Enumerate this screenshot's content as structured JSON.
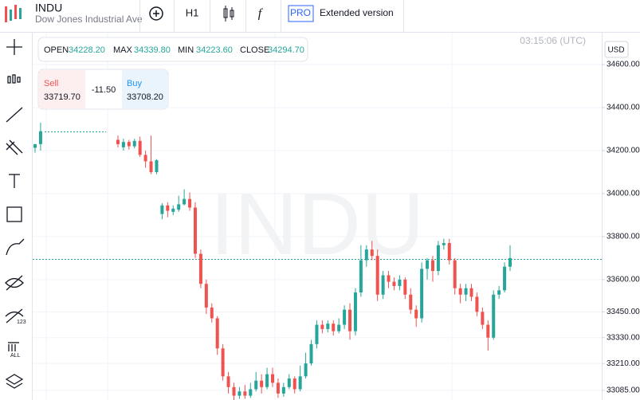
{
  "header": {
    "title": "INDU",
    "subtitle": "Dow Jones Industrial Ave",
    "timeframe": "H1",
    "pro": "PRO",
    "extended": "Extended version"
  },
  "toolbar": {
    "icon_123": "123",
    "icon_all": "ALL"
  },
  "info": {
    "open_label": "OPEN",
    "open": "34228.20",
    "max_label": "MAX",
    "max": "34339.80",
    "min_label": "MIN",
    "min": "34223.60",
    "close_label": "CLOSE",
    "close": "34294.70"
  },
  "trade": {
    "sell_label": "Sell",
    "sell": "33719.70",
    "spread": "-11.50",
    "buy_label": "Buy",
    "buy": "33708.20"
  },
  "clock": "03:15:06 (UTC)",
  "currency": "USD",
  "watermark": "INDU",
  "chart_data": {
    "type": "candlestick",
    "up_color": "#26a69a",
    "down_color": "#ef5350",
    "categories": [
      null,
      null,
      null,
      null,
      null,
      null,
      null,
      null,
      null,
      null,
      null,
      null,
      null,
      null,
      null,
      null,
      null,
      null,
      null,
      null,
      null,
      null,
      null,
      null,
      null,
      null,
      null,
      null,
      null,
      null,
      null,
      null,
      null,
      null,
      null,
      null,
      null,
      null,
      null,
      null,
      null,
      null,
      null,
      null,
      null,
      null,
      null,
      null,
      null,
      null,
      null,
      null,
      null,
      null,
      null,
      null,
      null,
      null,
      null,
      null,
      null,
      null,
      null,
      null,
      null,
      null,
      null,
      null,
      null,
      null,
      null,
      null,
      null,
      null,
      null,
      null,
      null,
      null,
      null,
      null,
      null,
      null,
      null,
      null,
      null,
      null,
      null
    ],
    "open": [
      34213,
      34230,
      null,
      null,
      null,
      null,
      null,
      null,
      null,
      null,
      null,
      null,
      null,
      null,
      null,
      34250,
      34215,
      34240,
      34220,
      34245,
      34180,
      34150,
      34100,
      33905,
      33945,
      33915,
      33925,
      33950,
      33975,
      33935,
      33720,
      33580,
      33470,
      33420,
      33280,
      33150,
      33100,
      33060,
      33080,
      33060,
      33090,
      33130,
      33100,
      33160,
      33120,
      33070,
      33100,
      33140,
      33090,
      33150,
      33210,
      33300,
      33390,
      33370,
      33395,
      33360,
      33390,
      33460,
      33360,
      33540,
      33690,
      33740,
      33710,
      33530,
      33620,
      33590,
      33570,
      33600,
      33530,
      33460,
      33420,
      33650,
      33690,
      33640,
      33760,
      33770,
      33690,
      33560,
      33530,
      33560,
      33520,
      33450,
      33390,
      33330,
      33530,
      33550,
      33660
    ],
    "high": [
      34230,
      34330,
      null,
      null,
      null,
      null,
      null,
      null,
      null,
      null,
      null,
      null,
      null,
      null,
      null,
      34270,
      34255,
      34250,
      34255,
      34265,
      34200,
      34270,
      34160,
      33955,
      33960,
      33945,
      33990,
      34020,
      34005,
      33960,
      33740,
      33600,
      33490,
      33430,
      33300,
      33170,
      33120,
      33100,
      33110,
      33120,
      33170,
      33160,
      33190,
      33190,
      33140,
      33120,
      33160,
      33150,
      33200,
      33260,
      33320,
      33410,
      33410,
      33410,
      33410,
      33420,
      33480,
      33490,
      33560,
      33760,
      33760,
      33780,
      33740,
      33640,
      33640,
      33610,
      33620,
      33610,
      33560,
      33480,
      33680,
      33700,
      33710,
      33780,
      33790,
      33790,
      33700,
      33580,
      33580,
      33580,
      33540,
      33470,
      33410,
      33550,
      33570,
      33680,
      33760
    ],
    "low": [
      34190,
      34200,
      null,
      null,
      null,
      null,
      null,
      null,
      null,
      null,
      null,
      null,
      null,
      null,
      null,
      34215,
      34200,
      34205,
      34210,
      34170,
      34120,
      34090,
      34090,
      33880,
      33890,
      33900,
      33915,
      33945,
      33920,
      33700,
      33560,
      33440,
      33400,
      33250,
      33130,
      33070,
      33040,
      33045,
      33045,
      33050,
      33080,
      33070,
      33090,
      33100,
      33050,
      33055,
      33090,
      33070,
      33080,
      33140,
      33200,
      33280,
      33350,
      33355,
      33340,
      33350,
      33370,
      33320,
      33340,
      33520,
      33660,
      33690,
      33500,
      33510,
      33560,
      33550,
      33550,
      33510,
      33440,
      33380,
      33400,
      33600,
      33590,
      33620,
      33740,
      33670,
      33530,
      33490,
      33500,
      33500,
      33430,
      33370,
      33270,
      33320,
      33510,
      33540,
      33640
    ],
    "close": [
      34230,
      34290,
      null,
      null,
      null,
      null,
      null,
      null,
      null,
      null,
      null,
      null,
      null,
      null,
      null,
      34230,
      34240,
      34220,
      34245,
      34180,
      34150,
      34100,
      34155,
      33945,
      33920,
      33930,
      33950,
      33975,
      33935,
      33720,
      33580,
      33470,
      33420,
      33280,
      33150,
      33100,
      33060,
      33080,
      33060,
      33090,
      33130,
      33100,
      33160,
      33120,
      33070,
      33100,
      33140,
      33090,
      33150,
      33210,
      33300,
      33390,
      33370,
      33395,
      33360,
      33390,
      33460,
      33360,
      33540,
      33690,
      33740,
      33710,
      33530,
      33620,
      33590,
      33570,
      33600,
      33530,
      33460,
      33420,
      33650,
      33690,
      33640,
      33760,
      33770,
      33690,
      33560,
      33530,
      33560,
      33520,
      33450,
      33390,
      33330,
      33530,
      33550,
      33660,
      33700
    ],
    "ylim": [
      33040,
      34752
    ],
    "yticks": [
      {
        "value": 33085,
        "label": "33085.00"
      },
      {
        "value": 33210,
        "label": "33210.00"
      },
      {
        "value": 33330,
        "label": "33330.00"
      },
      {
        "value": 33450,
        "label": "33450.00"
      },
      {
        "value": 33600,
        "label": "33600.00"
      },
      {
        "value": 33800,
        "label": "33800.00"
      },
      {
        "value": 34000,
        "label": "34000.00"
      },
      {
        "value": 34200,
        "label": "34200.00"
      },
      {
        "value": 34400,
        "label": "34400.00"
      },
      {
        "value": 34600,
        "label": "34600.00"
      }
    ],
    "grid": true
  }
}
